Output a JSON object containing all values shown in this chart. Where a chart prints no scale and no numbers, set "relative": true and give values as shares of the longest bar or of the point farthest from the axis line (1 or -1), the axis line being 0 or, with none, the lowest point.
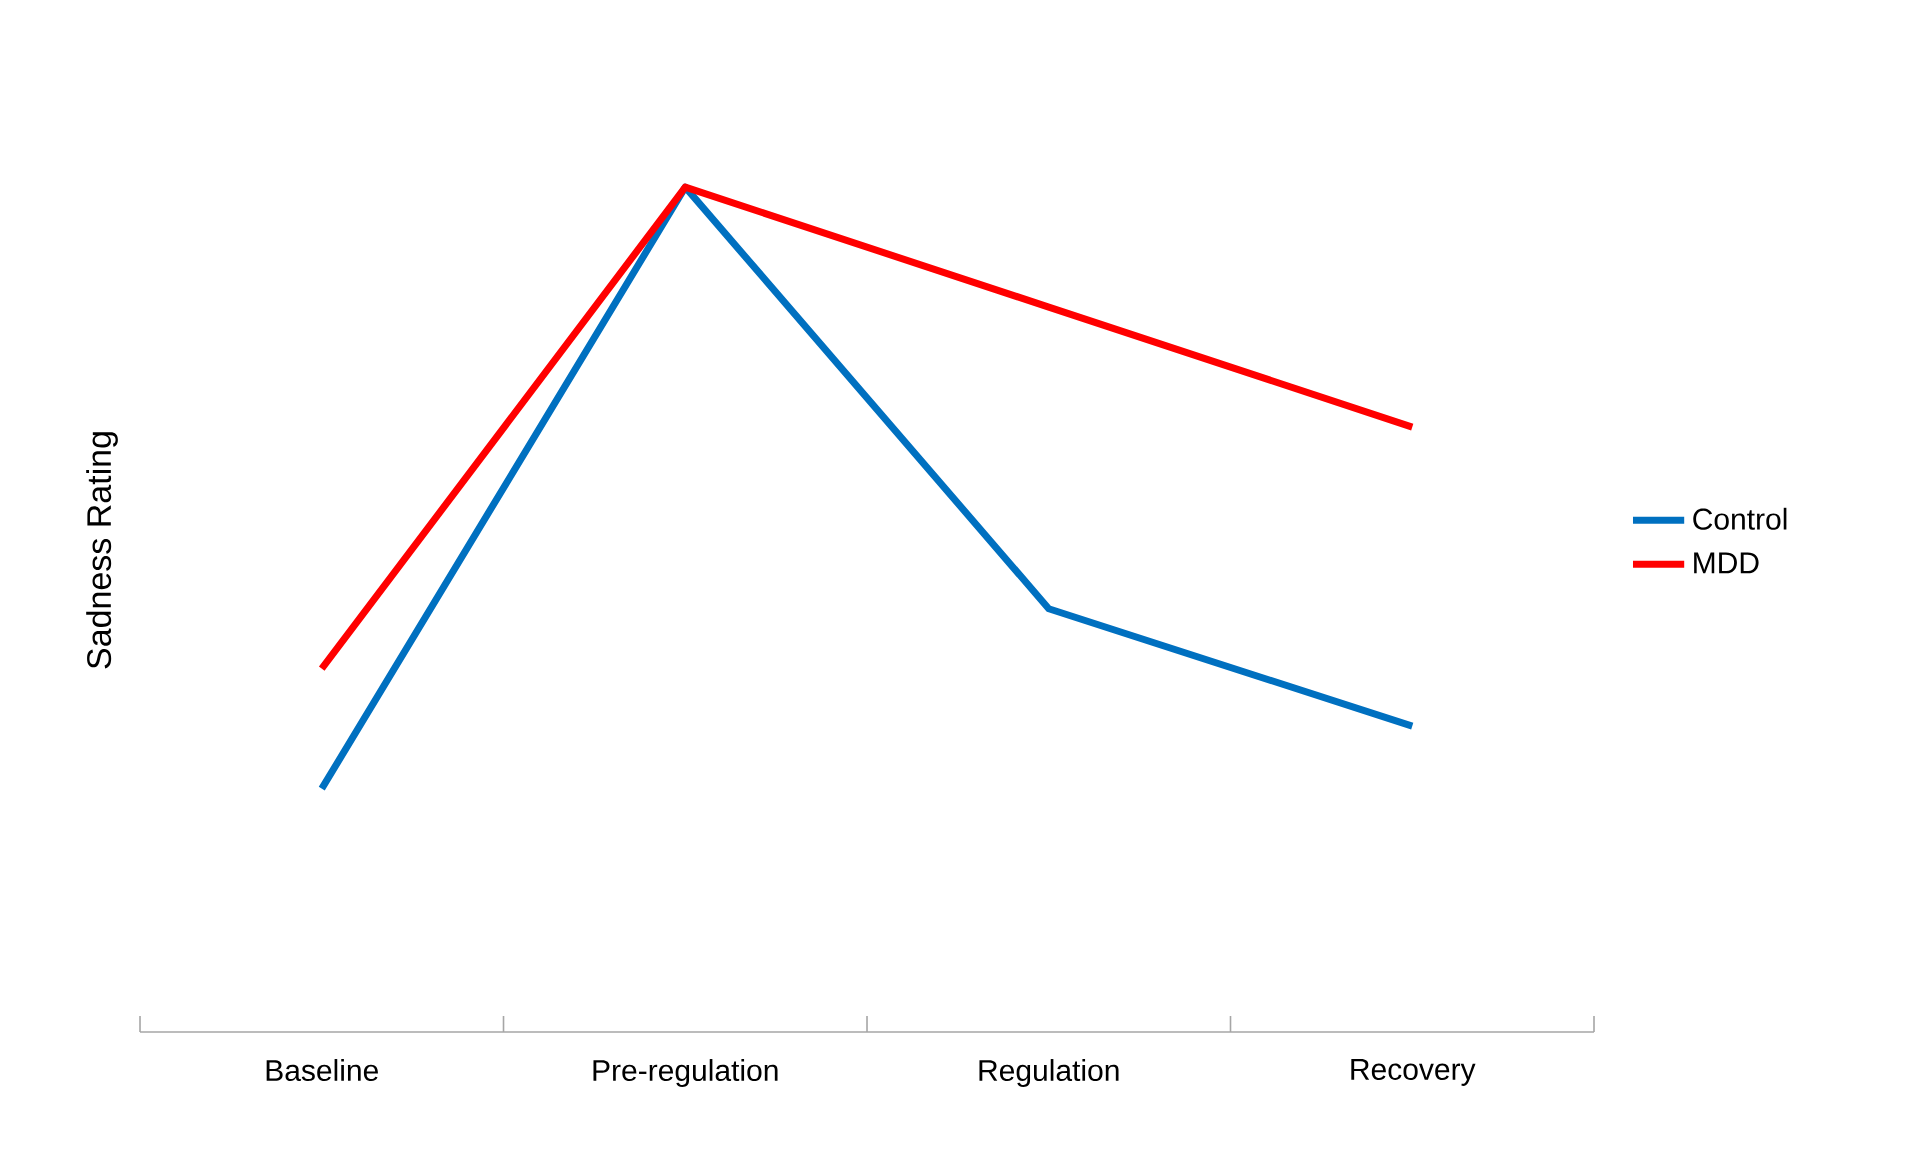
{
  "chart_data": {
    "type": "line",
    "ylabel": "Sadness Rating",
    "categories": [
      "Baseline",
      "Pre-regulation",
      "Regulation",
      "Recovery"
    ],
    "relative": true,
    "legend": "right",
    "marker": "none",
    "line_style": "solid",
    "series": [
      {
        "name": "Control",
        "color": "#0070c0",
        "values": [
          0.288,
          1,
          0.501,
          0.362
        ]
      },
      {
        "name": "MDD",
        "color": "#ff0000",
        "values": [
          0.43,
          1,
          0.858,
          0.716
        ]
      }
    ]
  }
}
